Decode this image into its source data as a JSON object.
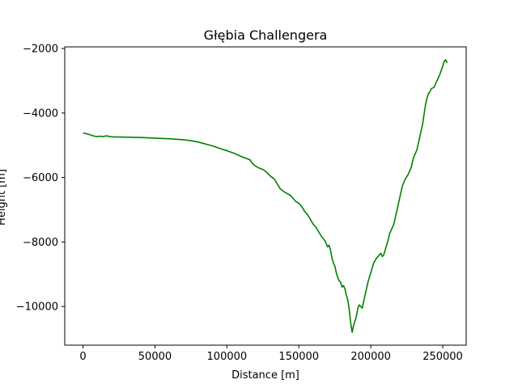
{
  "chart_data": {
    "type": "line",
    "title": "Głębia Challengera",
    "xlabel": "Distance [m]",
    "ylabel": "Height [m]",
    "xlim": [
      -12700,
      266300
    ],
    "ylim": [
      -11200,
      -1950
    ],
    "xticks": [
      0,
      50000,
      100000,
      150000,
      200000,
      250000
    ],
    "xtick_labels": [
      "0",
      "50000",
      "100000",
      "150000",
      "200000",
      "250000"
    ],
    "yticks": [
      -10000,
      -8000,
      -6000,
      -4000,
      -2000
    ],
    "ytick_labels": [
      "−10000",
      "−8000",
      "−6000",
      "−4000",
      "−2000"
    ],
    "grid": false,
    "line_color": "#008000",
    "series": [
      {
        "x": [
          0,
          3000,
          5000,
          8000,
          10000,
          12000,
          14000,
          16000,
          20000,
          30000,
          40000,
          50000,
          60000,
          70000,
          75000,
          80000,
          85000,
          90000,
          95000,
          100000,
          105000,
          110000,
          113000,
          116000,
          118000,
          120000,
          122000,
          125000,
          128000,
          130000,
          133000,
          135000,
          137000,
          140000,
          142000,
          144000,
          146000,
          148000,
          150000,
          152000,
          154000,
          156000,
          158000,
          160000,
          162000,
          164000,
          166000,
          168000,
          169000,
          170000,
          171000,
          172000,
          173000,
          174000,
          175000,
          176000,
          177000,
          178000,
          179000,
          180000,
          181000,
          182000,
          183000,
          184000,
          185000,
          186000,
          187000,
          188000,
          189000,
          190000,
          191000,
          192000,
          193000,
          194000,
          196000,
          198000,
          200000,
          202000,
          204000,
          206000,
          207000,
          208000,
          209000,
          210000,
          212000,
          213000,
          214000,
          216000,
          218000,
          220000,
          222000,
          224000,
          226000,
          228000,
          229000,
          230000,
          232000,
          234000,
          236000,
          237000,
          238000,
          239000,
          240000,
          241000,
          242000,
          244000,
          246000,
          248000,
          250000,
          251000,
          252000,
          253000
        ],
        "y": [
          -4620,
          -4650,
          -4680,
          -4720,
          -4730,
          -4720,
          -4730,
          -4710,
          -4740,
          -4750,
          -4760,
          -4780,
          -4800,
          -4830,
          -4860,
          -4900,
          -4960,
          -5020,
          -5100,
          -5170,
          -5250,
          -5350,
          -5400,
          -5450,
          -5580,
          -5650,
          -5700,
          -5750,
          -5850,
          -5950,
          -6050,
          -6200,
          -6350,
          -6450,
          -6500,
          -6550,
          -6650,
          -6750,
          -6800,
          -6900,
          -7050,
          -7150,
          -7300,
          -7450,
          -7550,
          -7700,
          -7850,
          -7950,
          -8050,
          -8150,
          -8100,
          -8250,
          -8500,
          -8650,
          -8750,
          -8950,
          -9100,
          -9200,
          -9250,
          -9400,
          -9350,
          -9450,
          -9650,
          -9800,
          -10100,
          -10500,
          -10800,
          -10600,
          -10450,
          -10300,
          -10050,
          -9950,
          -10000,
          -10050,
          -9650,
          -9250,
          -8950,
          -8650,
          -8500,
          -8400,
          -8350,
          -8450,
          -8400,
          -8250,
          -7950,
          -7750,
          -7650,
          -7450,
          -7050,
          -6650,
          -6250,
          -6050,
          -5900,
          -5700,
          -5500,
          -5350,
          -5150,
          -4750,
          -4350,
          -4050,
          -3750,
          -3550,
          -3400,
          -3350,
          -3250,
          -3200,
          -3000,
          -2800,
          -2550,
          -2400,
          -2350,
          -2450
        ]
      }
    ]
  }
}
